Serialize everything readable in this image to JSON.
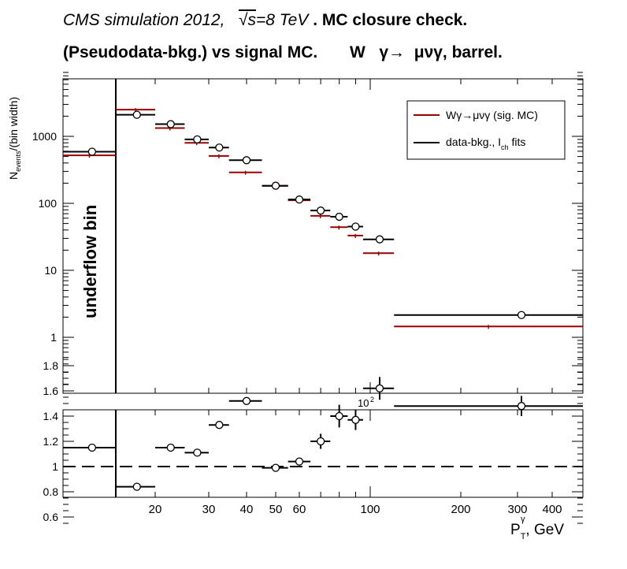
{
  "header": {
    "line1_italic": "CMS simulation 2012,",
    "line1_sqrt": "√s",
    "line1_energy": "=8 TeV",
    "line1_bold": " . MC closure check.",
    "line2": "(Pseudodata-bkg.) vs signal MC.       W   γ→  μνγ, barrel."
  },
  "colors": {
    "signal": "#990000",
    "data": "#000000",
    "ratio_line": "#000000"
  },
  "chart_data": [
    {
      "type": "scatter",
      "ylabel": "N_events/(bin width)",
      "xlabel": "",
      "log_x": true,
      "log_y": true,
      "xlim": [
        10.0,
        500
      ],
      "ylim": [
        0.15,
        9000
      ],
      "y_ticks": [
        "1",
        "10",
        "100",
        "1000"
      ],
      "x_exponent_label": "10",
      "x_exponent_sup": "2",
      "underflow_label": "underflow bin",
      "legend": {
        "position": "top-right",
        "entries": [
          "Wγ→μνγ (sig. MC)",
          "data-bkg., I_ch fits"
        ]
      },
      "series": [
        {
          "name": "Wγ→μνγ (sig. MC)",
          "color": "#990000",
          "bins": [
            {
              "lo": 10.0,
              "hi": 15.0,
              "y": 520
            },
            {
              "lo": 15.0,
              "hi": 20.0,
              "y": 2500
            },
            {
              "lo": 20.0,
              "hi": 25.0,
              "y": 1330
            },
            {
              "lo": 25.0,
              "hi": 30.0,
              "y": 800
            },
            {
              "lo": 30.0,
              "hi": 35.0,
              "y": 510
            },
            {
              "lo": 35.0,
              "hi": 45.0,
              "y": 290
            },
            {
              "lo": 45.0,
              "hi": 55.0,
              "y": 183
            },
            {
              "lo": 55.0,
              "hi": 65.0,
              "y": 111
            },
            {
              "lo": 65.0,
              "hi": 75.0,
              "y": 65
            },
            {
              "lo": 75.0,
              "hi": 85.0,
              "y": 44
            },
            {
              "lo": 85.0,
              "hi": 95.0,
              "y": 33
            },
            {
              "lo": 95.0,
              "hi": 120.0,
              "y": 18
            },
            {
              "lo": 120.0,
              "hi": 500.0,
              "y": 1.45
            }
          ]
        },
        {
          "name": "data-bkg., I_ch fits",
          "color": "#000000",
          "bins": [
            {
              "lo": 10.0,
              "hi": 15.0,
              "x": 12.5,
              "y": 590,
              "err": 0
            },
            {
              "lo": 15.0,
              "hi": 20.0,
              "x": 17.5,
              "y": 2100,
              "err": 0
            },
            {
              "lo": 20.0,
              "hi": 25.0,
              "x": 22.5,
              "y": 1520,
              "err": 0
            },
            {
              "lo": 25.0,
              "hi": 30.0,
              "x": 27.5,
              "y": 900,
              "err": 0
            },
            {
              "lo": 30.0,
              "hi": 35.0,
              "x": 32.5,
              "y": 680,
              "err": 0
            },
            {
              "lo": 35.0,
              "hi": 45.0,
              "x": 40.0,
              "y": 440,
              "err": 0
            },
            {
              "lo": 45.0,
              "hi": 55.0,
              "x": 50.0,
              "y": 183,
              "err": 0
            },
            {
              "lo": 55.0,
              "hi": 65.0,
              "x": 60.0,
              "y": 114,
              "err": 0
            },
            {
              "lo": 65.0,
              "hi": 75.0,
              "x": 70.0,
              "y": 78,
              "err": 0
            },
            {
              "lo": 75.0,
              "hi": 85.0,
              "x": 80.0,
              "y": 63,
              "err": 0
            },
            {
              "lo": 85.0,
              "hi": 95.0,
              "x": 90.0,
              "y": 45,
              "err": 0
            },
            {
              "lo": 95.0,
              "hi": 120.0,
              "x": 107.5,
              "y": 29,
              "err": 0
            },
            {
              "lo": 120.0,
              "hi": 500.0,
              "x": 310.0,
              "y": 2.15,
              "err": 0
            }
          ]
        }
      ]
    },
    {
      "type": "scatter",
      "ylabel": "",
      "xlabel": "P_T^γ, GeV",
      "log_x": true,
      "xlim": [
        10.0,
        500
      ],
      "ylim": [
        0.5,
        1.9
      ],
      "reference_line": 1.0,
      "y_ticks": [
        "0.6",
        "0.8",
        "1",
        "1.2",
        "1.4",
        "1.6",
        "1.8"
      ],
      "x_ticks": [
        "20",
        "30",
        "40",
        "50",
        "60",
        "100",
        "200",
        "300",
        "400"
      ],
      "series": [
        {
          "name": "",
          "color": "#000000",
          "bins": [
            {
              "lo": 10.0,
              "hi": 15.0,
              "x": 12.5,
              "y": 1.15,
              "err": 0
            },
            {
              "lo": 15.0,
              "hi": 20.0,
              "x": 17.5,
              "y": 0.84,
              "err": 0
            },
            {
              "lo": 20.0,
              "hi": 25.0,
              "x": 22.5,
              "y": 1.15,
              "err": 0
            },
            {
              "lo": 25.0,
              "hi": 30.0,
              "x": 27.5,
              "y": 1.11,
              "err": 0
            },
            {
              "lo": 30.0,
              "hi": 35.0,
              "x": 32.5,
              "y": 1.33,
              "err": 0.03
            },
            {
              "lo": 35.0,
              "hi": 45.0,
              "x": 40.0,
              "y": 1.52,
              "err": 0.02
            },
            {
              "lo": 45.0,
              "hi": 55.0,
              "x": 50.0,
              "y": 0.99,
              "err": 0.02
            },
            {
              "lo": 55.0,
              "hi": 65.0,
              "x": 60.0,
              "y": 1.04,
              "err": 0.03
            },
            {
              "lo": 65.0,
              "hi": 75.0,
              "x": 70.0,
              "y": 1.2,
              "err": 0.06
            },
            {
              "lo": 75.0,
              "hi": 85.0,
              "x": 80.0,
              "y": 1.4,
              "err": 0.09
            },
            {
              "lo": 85.0,
              "hi": 95.0,
              "x": 90.0,
              "y": 1.37,
              "err": 0.08
            },
            {
              "lo": 95.0,
              "hi": 120.0,
              "x": 107.5,
              "y": 1.62,
              "err": 0.09
            },
            {
              "lo": 120.0,
              "hi": 500.0,
              "x": 310.0,
              "y": 1.48,
              "err": 0.08
            }
          ]
        }
      ]
    }
  ]
}
